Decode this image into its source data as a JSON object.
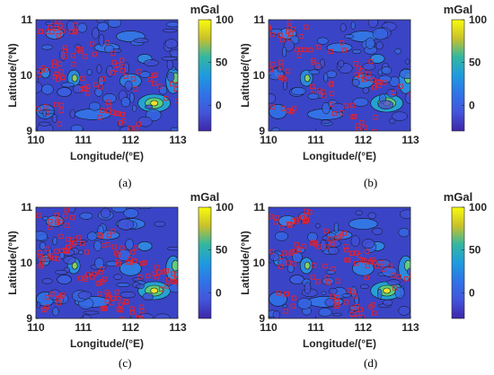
{
  "panels": [
    {
      "caption": "(a)"
    },
    {
      "caption": "(b)"
    },
    {
      "caption": "(c)"
    },
    {
      "caption": "(d)"
    }
  ],
  "map": {
    "x_label": "Longitude/(°E)",
    "y_label": "Latitude/(°N)",
    "x_ticks": [
      "110",
      "111",
      "112",
      "113"
    ],
    "y_ticks": [
      "9",
      "10",
      "11"
    ],
    "x_range": [
      110,
      113
    ],
    "y_range": [
      9,
      11
    ],
    "base_color": "#3a44c6",
    "contour_color": "#111111",
    "marker_color": "#e8202a"
  },
  "colorbar": {
    "unit": "mGal",
    "ticks": [
      "100",
      "50",
      "0"
    ],
    "tick_values": [
      100,
      50,
      0
    ],
    "range": [
      -30,
      100
    ],
    "colors": [
      "#f9fb0e",
      "#c9c129",
      "#33b7a0",
      "#1e9bdf",
      "#2f73e7",
      "#4355db",
      "#3e26a8"
    ]
  }
}
